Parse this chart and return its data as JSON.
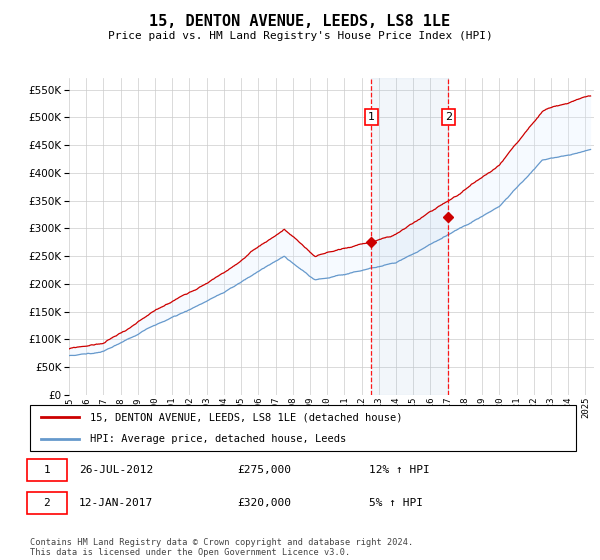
{
  "title": "15, DENTON AVENUE, LEEDS, LS8 1LE",
  "subtitle": "Price paid vs. HM Land Registry's House Price Index (HPI)",
  "yticks": [
    0,
    50000,
    100000,
    150000,
    200000,
    250000,
    300000,
    350000,
    400000,
    450000,
    500000,
    550000
  ],
  "ylim": [
    0,
    570000
  ],
  "hpi_fill_color": "#ddeeff",
  "hpi_line_color": "#6699cc",
  "price_color": "#cc0000",
  "sale1_date": 2012.57,
  "sale1_price": 275000,
  "sale2_date": 2017.04,
  "sale2_price": 320000,
  "annotation1": "1",
  "annotation2": "2",
  "legend_property": "15, DENTON AVENUE, LEEDS, LS8 1LE (detached house)",
  "legend_hpi": "HPI: Average price, detached house, Leeds",
  "note1_date": "26-JUL-2012",
  "note1_price": "£275,000",
  "note1_hpi": "12% ↑ HPI",
  "note2_date": "12-JAN-2017",
  "note2_price": "£320,000",
  "note2_hpi": "5% ↑ HPI",
  "footer": "Contains HM Land Registry data © Crown copyright and database right 2024.\nThis data is licensed under the Open Government Licence v3.0.",
  "xlim_start": 1995.0,
  "xlim_end": 2025.5,
  "xticks": [
    1995,
    1996,
    1997,
    1998,
    1999,
    2000,
    2001,
    2002,
    2003,
    2004,
    2005,
    2006,
    2007,
    2008,
    2009,
    2010,
    2011,
    2012,
    2013,
    2014,
    2015,
    2016,
    2017,
    2018,
    2019,
    2020,
    2021,
    2022,
    2023,
    2024,
    2025
  ]
}
